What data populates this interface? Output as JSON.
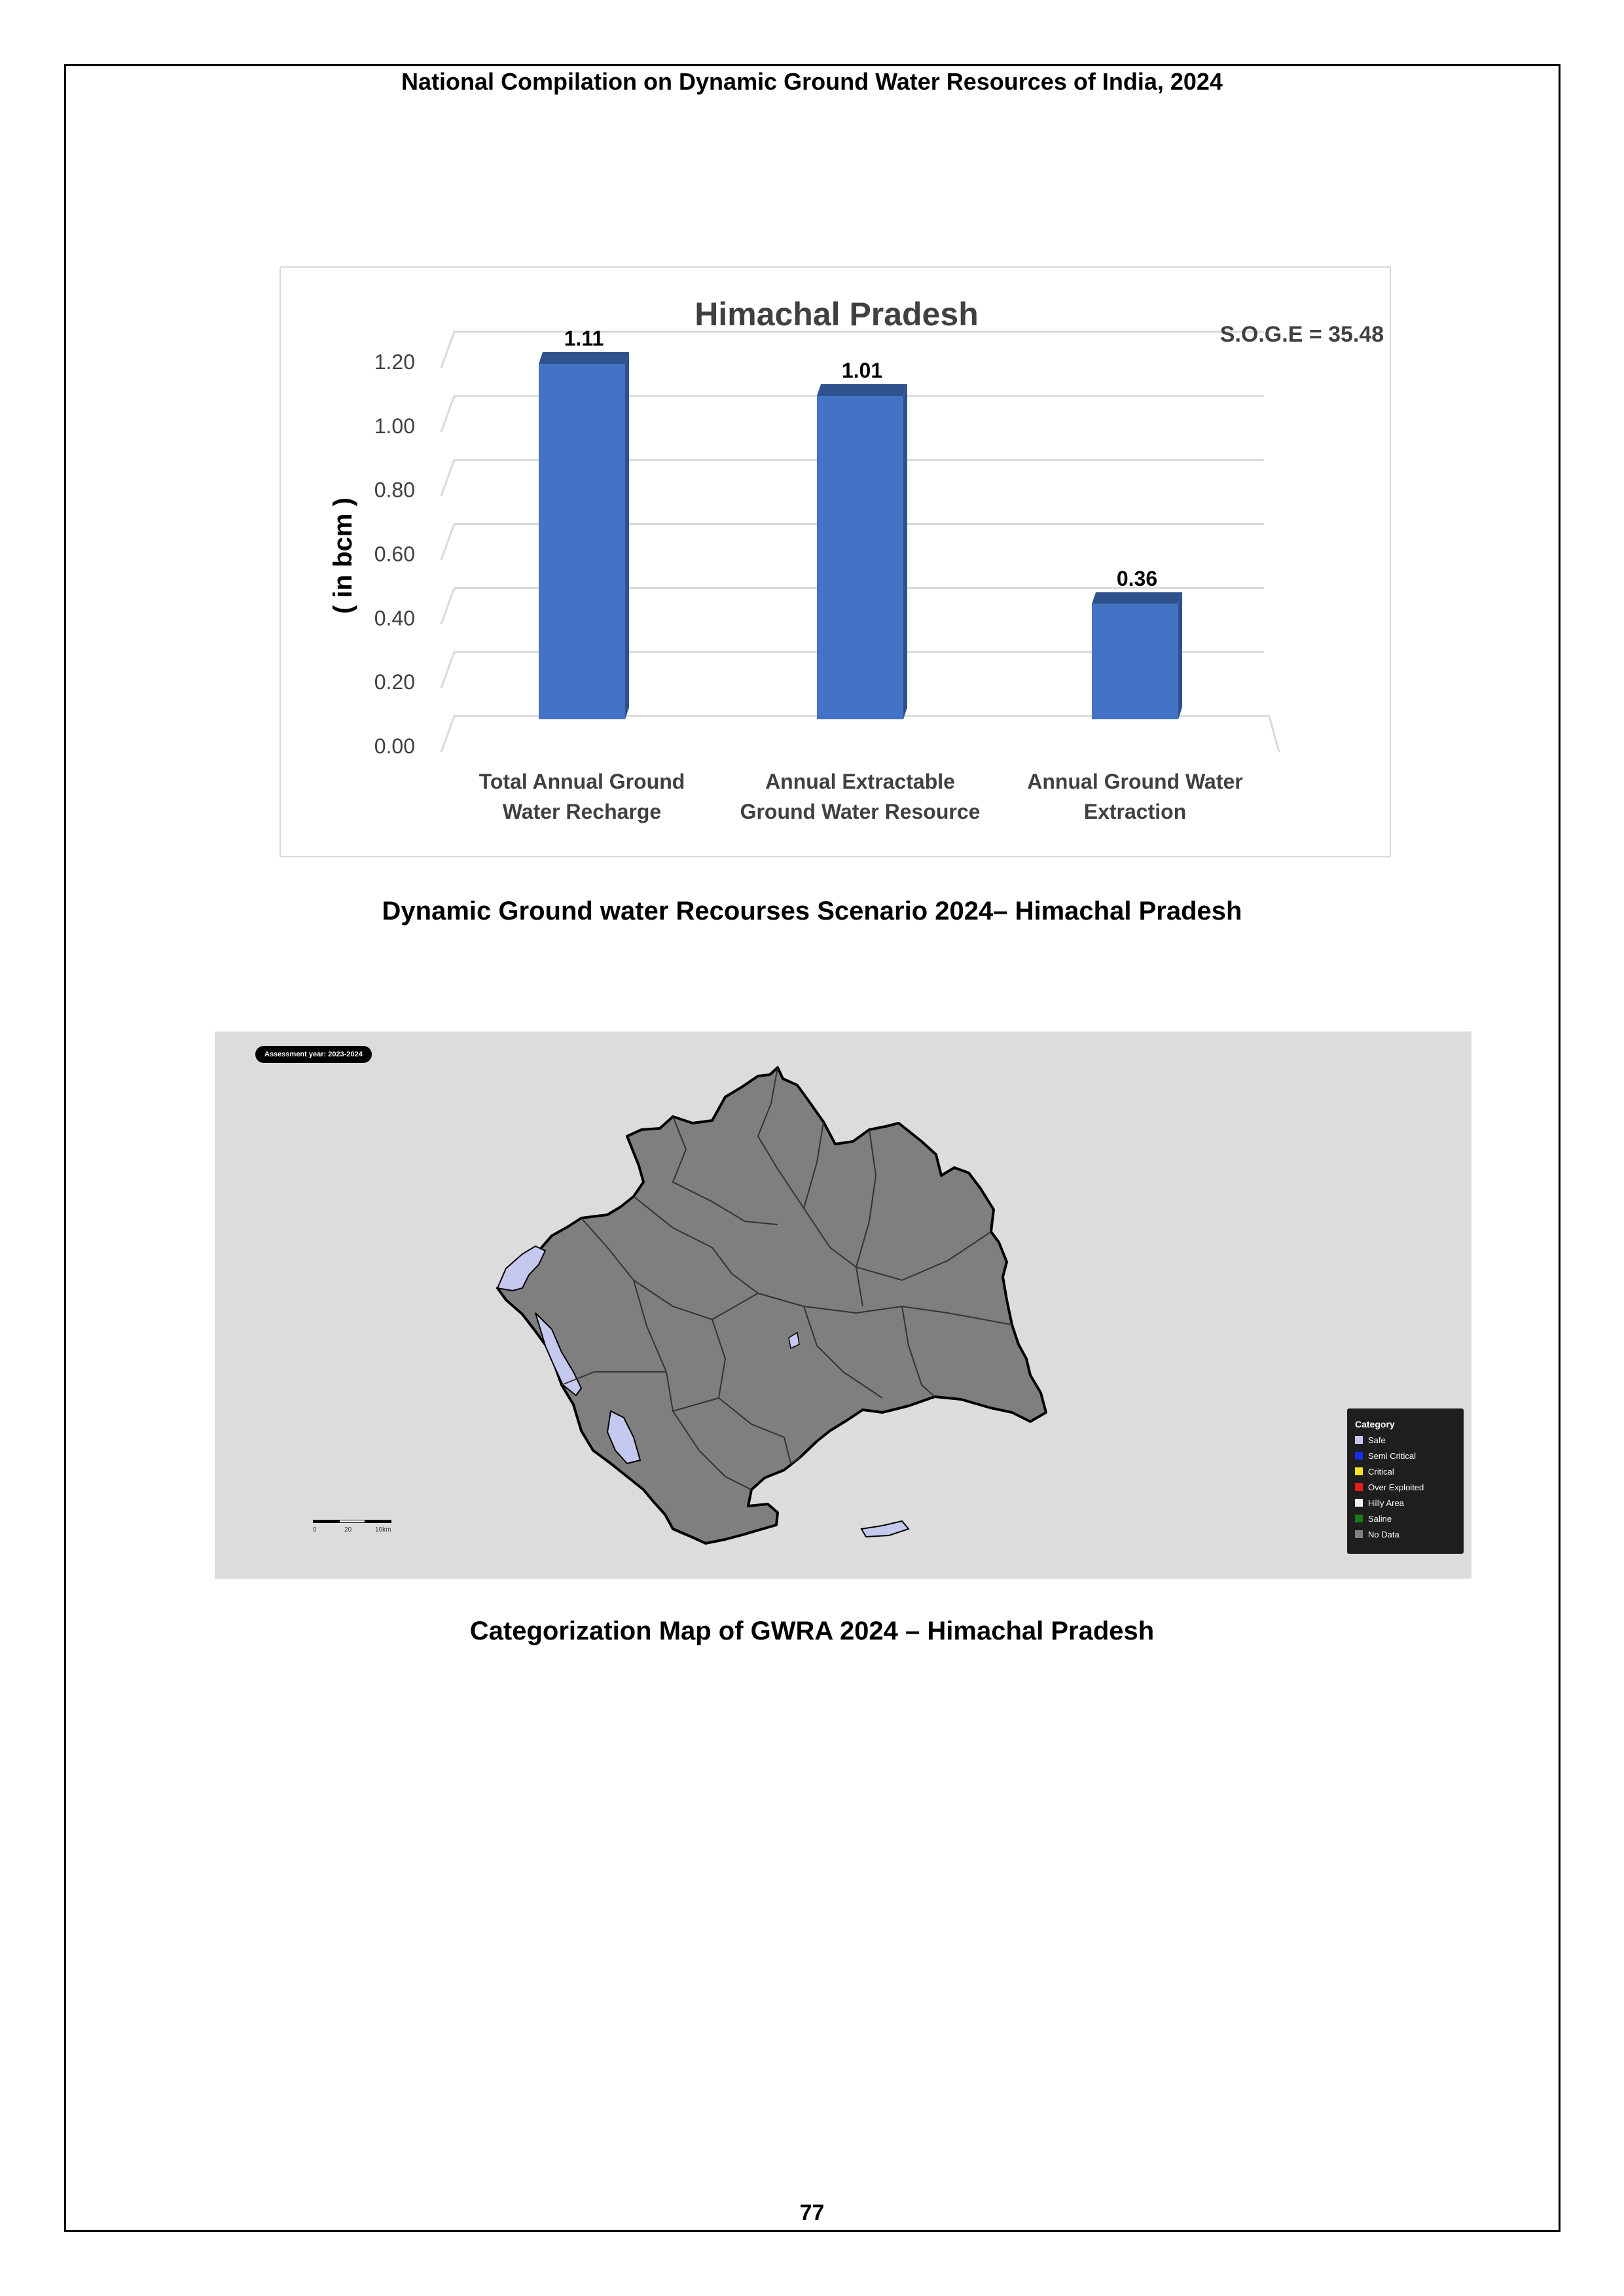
{
  "header": {
    "title": "National Compilation on Dynamic Ground Water Resources of India, 2024"
  },
  "chart_data": {
    "type": "bar",
    "title": "Himachal Pradesh",
    "annotation": "S.O.G.E = 35.48",
    "ylabel": "( in bcm )",
    "xlabel": "",
    "ylim": [
      0,
      1.2
    ],
    "yticks": [
      "0.00",
      "0.20",
      "0.40",
      "0.60",
      "0.80",
      "1.00",
      "1.20"
    ],
    "categories": [
      [
        "Total Annual  Ground",
        "Water Recharge"
      ],
      [
        "Annual Extractable",
        "Ground Water Resource"
      ],
      [
        "Annual Ground Water",
        "Extraction"
      ]
    ],
    "values": [
      1.11,
      1.01,
      0.36
    ],
    "data_labels": [
      "1.11",
      "1.01",
      "0.36"
    ],
    "grid": true,
    "colors": {
      "bar": "#4472C4",
      "bar_top": "#2F528F",
      "grid": "#d9d9d9"
    }
  },
  "captions": {
    "chart": "Dynamic Ground water Recourses Scenario 2024– Himachal Pradesh",
    "map": "Categorization Map of GWRA 2024 – Himachal Pradesh"
  },
  "map": {
    "assessment_label": "Assessment year: 2023-2024",
    "legend_title": "Category",
    "legend": [
      {
        "label": "Safe",
        "color": "#c5c9f0"
      },
      {
        "label": "Semi Critical",
        "color": "#1b2cf0"
      },
      {
        "label": "Critical",
        "color": "#f5e12a"
      },
      {
        "label": "Over Exploited",
        "color": "#e81c1c"
      },
      {
        "label": "Hilly Area",
        "color": "#f2f2f2"
      },
      {
        "label": "Saline",
        "color": "#1a7a1a"
      },
      {
        "label": "No Data",
        "color": "#808080"
      }
    ],
    "scale_labels": [
      "0",
      "20",
      "10km"
    ],
    "colors": {
      "background": "#dcdcdc",
      "state_fill": "#7f7f7f",
      "safe_fill": "#c5c9f0"
    }
  },
  "footer": {
    "page_number": "77"
  }
}
